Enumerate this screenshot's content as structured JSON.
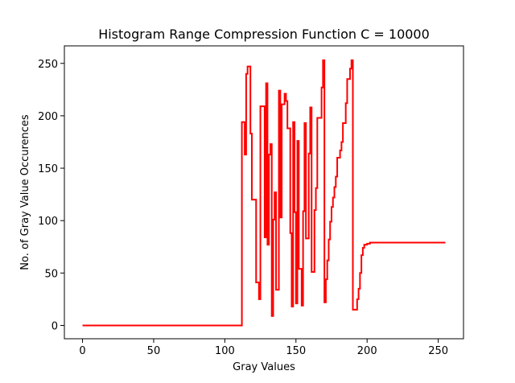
{
  "chart_data": {
    "type": "line",
    "title": "Histogram Range Compression Function C = 10000",
    "xlabel": "Gray Values",
    "ylabel": "No. of Gray Value Occurences",
    "xlim": [
      -12.75,
      267.75
    ],
    "ylim": [
      -12.7,
      266.7
    ],
    "xticks": [
      0,
      50,
      100,
      150,
      200,
      250
    ],
    "yticks": [
      0,
      50,
      100,
      150,
      200,
      250
    ],
    "grid": false,
    "line_style": "steps",
    "series": [
      {
        "color": "#ff0000",
        "points": [
          [
            0,
            0
          ],
          [
            112,
            0
          ],
          [
            112,
            194
          ],
          [
            114,
            194
          ],
          [
            114,
            163
          ],
          [
            115,
            163
          ],
          [
            115,
            240
          ],
          [
            116,
            240
          ],
          [
            116,
            247
          ],
          [
            118,
            247
          ],
          [
            118,
            183
          ],
          [
            119,
            183
          ],
          [
            119,
            120
          ],
          [
            122,
            120
          ],
          [
            122,
            41
          ],
          [
            124,
            41
          ],
          [
            124,
            25
          ],
          [
            125,
            25
          ],
          [
            125,
            209
          ],
          [
            128,
            209
          ],
          [
            128,
            84
          ],
          [
            129,
            84
          ],
          [
            129,
            231
          ],
          [
            130,
            231
          ],
          [
            130,
            77
          ],
          [
            131,
            77
          ],
          [
            131,
            163
          ],
          [
            132,
            163
          ],
          [
            132,
            173
          ],
          [
            133,
            173
          ],
          [
            133,
            9
          ],
          [
            134,
            9
          ],
          [
            134,
            101
          ],
          [
            135,
            101
          ],
          [
            135,
            127
          ],
          [
            136,
            127
          ],
          [
            136,
            34
          ],
          [
            138,
            34
          ],
          [
            138,
            224
          ],
          [
            139,
            224
          ],
          [
            139,
            103
          ],
          [
            140,
            103
          ],
          [
            140,
            211
          ],
          [
            142,
            211
          ],
          [
            142,
            221
          ],
          [
            143,
            221
          ],
          [
            143,
            214
          ],
          [
            144,
            214
          ],
          [
            144,
            188
          ],
          [
            146,
            188
          ],
          [
            146,
            88
          ],
          [
            147,
            88
          ],
          [
            147,
            18
          ],
          [
            148,
            18
          ],
          [
            148,
            194
          ],
          [
            149,
            194
          ],
          [
            149,
            108
          ],
          [
            150,
            108
          ],
          [
            150,
            21
          ],
          [
            151,
            21
          ],
          [
            151,
            176
          ],
          [
            152,
            176
          ],
          [
            152,
            54
          ],
          [
            154,
            54
          ],
          [
            154,
            19
          ],
          [
            155,
            19
          ],
          [
            155,
            109
          ],
          [
            156,
            109
          ],
          [
            156,
            193
          ],
          [
            157,
            193
          ],
          [
            157,
            83
          ],
          [
            159,
            83
          ],
          [
            159,
            164
          ],
          [
            160,
            164
          ],
          [
            160,
            208
          ],
          [
            161,
            208
          ],
          [
            161,
            51
          ],
          [
            163,
            51
          ],
          [
            163,
            110
          ],
          [
            164,
            110
          ],
          [
            164,
            131
          ],
          [
            165,
            131
          ],
          [
            165,
            198
          ],
          [
            168,
            198
          ],
          [
            168,
            227
          ],
          [
            169,
            227
          ],
          [
            169,
            253
          ],
          [
            170,
            253
          ],
          [
            170,
            22
          ],
          [
            171,
            22
          ],
          [
            171,
            44
          ],
          [
            172,
            44
          ],
          [
            172,
            62
          ],
          [
            173,
            62
          ],
          [
            173,
            82
          ],
          [
            174,
            82
          ],
          [
            174,
            99
          ],
          [
            175,
            99
          ],
          [
            175,
            113
          ],
          [
            176,
            113
          ],
          [
            176,
            122
          ],
          [
            177,
            122
          ],
          [
            177,
            132
          ],
          [
            178,
            132
          ],
          [
            178,
            142
          ],
          [
            179,
            142
          ],
          [
            179,
            160
          ],
          [
            181,
            160
          ],
          [
            181,
            167
          ],
          [
            182,
            167
          ],
          [
            182,
            175
          ],
          [
            183,
            175
          ],
          [
            183,
            193
          ],
          [
            185,
            193
          ],
          [
            185,
            212
          ],
          [
            186,
            212
          ],
          [
            186,
            235
          ],
          [
            188,
            235
          ],
          [
            188,
            245
          ],
          [
            189,
            245
          ],
          [
            189,
            253
          ],
          [
            190,
            253
          ],
          [
            190,
            15
          ],
          [
            193,
            15
          ],
          [
            193,
            25
          ],
          [
            194,
            25
          ],
          [
            194,
            35
          ],
          [
            195,
            35
          ],
          [
            195,
            50
          ],
          [
            196,
            50
          ],
          [
            196,
            67
          ],
          [
            197,
            67
          ],
          [
            197,
            74
          ],
          [
            198,
            74
          ],
          [
            198,
            77
          ],
          [
            200,
            77
          ],
          [
            200,
            78
          ],
          [
            202,
            78
          ],
          [
            202,
            79
          ],
          [
            255,
            79
          ]
        ]
      }
    ]
  }
}
